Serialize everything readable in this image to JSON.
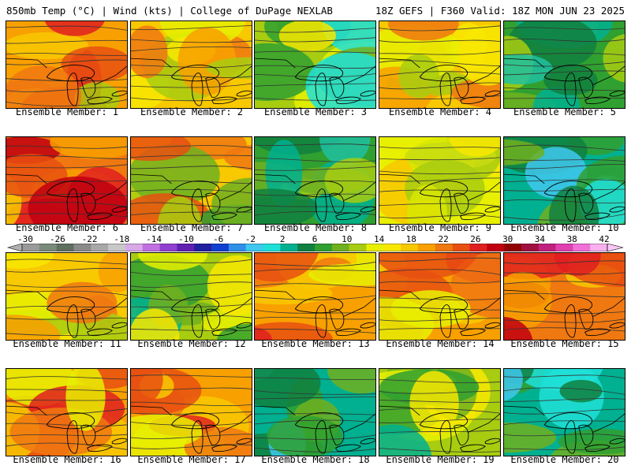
{
  "header": {
    "left": "850mb Temp (°C) | Wind (kts) | College of DuPage NEXLAB",
    "right": "18Z GEFS | F360 Valid: 18Z MON JUN 23 2025"
  },
  "caption_prefix": "Ensemble Member:",
  "members": [
    {
      "caption": "Ensemble Member: 1",
      "field": "orange-red"
    },
    {
      "caption": "Ensemble Member: 2",
      "field": "yellow-orange"
    },
    {
      "caption": "Ensemble Member: 3",
      "field": "yellow-green"
    },
    {
      "caption": "Ensemble Member: 4",
      "field": "yellow-orange"
    },
    {
      "caption": "Ensemble Member: 5",
      "field": "green"
    },
    {
      "caption": "Ensemble Member: 6",
      "field": "red-orange"
    },
    {
      "caption": "Ensemble Member: 7",
      "field": "orange-green"
    },
    {
      "caption": "Ensemble Member: 8",
      "field": "green"
    },
    {
      "caption": "Ensemble Member: 9",
      "field": "yellow"
    },
    {
      "caption": "Ensemble Member: 10",
      "field": "teal-green"
    },
    {
      "caption": "Ensemble Member: 11",
      "field": "yellow-orange"
    },
    {
      "caption": "Ensemble Member: 12",
      "field": "green-yellow"
    },
    {
      "caption": "Ensemble Member: 13",
      "field": "orange"
    },
    {
      "caption": "Ensemble Member: 14",
      "field": "orange"
    },
    {
      "caption": "Ensemble Member: 15",
      "field": "red-orange"
    },
    {
      "caption": "Ensemble Member: 16",
      "field": "orange"
    },
    {
      "caption": "Ensemble Member: 17",
      "field": "orange"
    },
    {
      "caption": "Ensemble Member: 18",
      "field": "teal-green"
    },
    {
      "caption": "Ensemble Member: 19",
      "field": "green-yellow"
    },
    {
      "caption": "Ensemble Member: 20",
      "field": "teal-green"
    }
  ],
  "scale": {
    "labels": [
      "-30",
      "-26",
      "-22",
      "-18",
      "-14",
      "-10",
      "-6",
      "-2",
      "2",
      "6",
      "10",
      "14",
      "18",
      "22",
      "26",
      "30",
      "34",
      "38",
      "42"
    ],
    "colors": [
      "#9a9a9a",
      "#7a8a7a",
      "#5f6f5f",
      "#8a8a8a",
      "#a8a8a8",
      "#c8c8c8",
      "#d8a8e8",
      "#c070e0",
      "#9040d0",
      "#6020b0",
      "#2020a0",
      "#1040d0",
      "#3090e8",
      "#40c8f0",
      "#20e0d8",
      "#00b090",
      "#108040",
      "#30a030",
      "#70b020",
      "#a8cc10",
      "#e8f000",
      "#f8e800",
      "#f8c800",
      "#f8a000",
      "#f07810",
      "#e85010",
      "#e02020",
      "#c00010",
      "#900000",
      "#a01040",
      "#c02080",
      "#e040b0",
      "#f070d8",
      "#f8b0f0"
    ],
    "under_color": "#b0b0b0",
    "over_color": "#f8c8f8"
  },
  "field_palettes": {
    "orange-red": [
      "#f8a000",
      "#f07810",
      "#f8c800",
      "#e85010",
      "#e02020",
      "#a8cc10"
    ],
    "yellow-orange": [
      "#f8c800",
      "#f8e800",
      "#f8a000",
      "#a8cc10",
      "#f07810",
      "#e8f000"
    ],
    "yellow-green": [
      "#a8cc10",
      "#e8f000",
      "#70b020",
      "#30a030",
      "#20e0d8",
      "#f8e800"
    ],
    "green": [
      "#30a030",
      "#70b020",
      "#00b090",
      "#108040",
      "#a8cc10",
      "#20c0a0"
    ],
    "red-orange": [
      "#f07810",
      "#e85010",
      "#f8a000",
      "#e02020",
      "#c00010",
      "#f8c800"
    ],
    "orange-green": [
      "#f8c800",
      "#a8cc10",
      "#f07810",
      "#70b020",
      "#e85010",
      "#30a030"
    ],
    "yellow": [
      "#e8f000",
      "#f8e800",
      "#a8cc10",
      "#f8c800",
      "#d8e800",
      "#c8dc10"
    ],
    "teal-green": [
      "#00b090",
      "#30a030",
      "#20e0d8",
      "#108040",
      "#70b020",
      "#40c8f0"
    ],
    "green-yellow": [
      "#a8cc10",
      "#70b020",
      "#e8f000",
      "#30a030",
      "#f8e800",
      "#00b090"
    ],
    "orange": [
      "#f8a000",
      "#f8c800",
      "#f07810",
      "#e85010",
      "#e8f000",
      "#e02020"
    ]
  }
}
